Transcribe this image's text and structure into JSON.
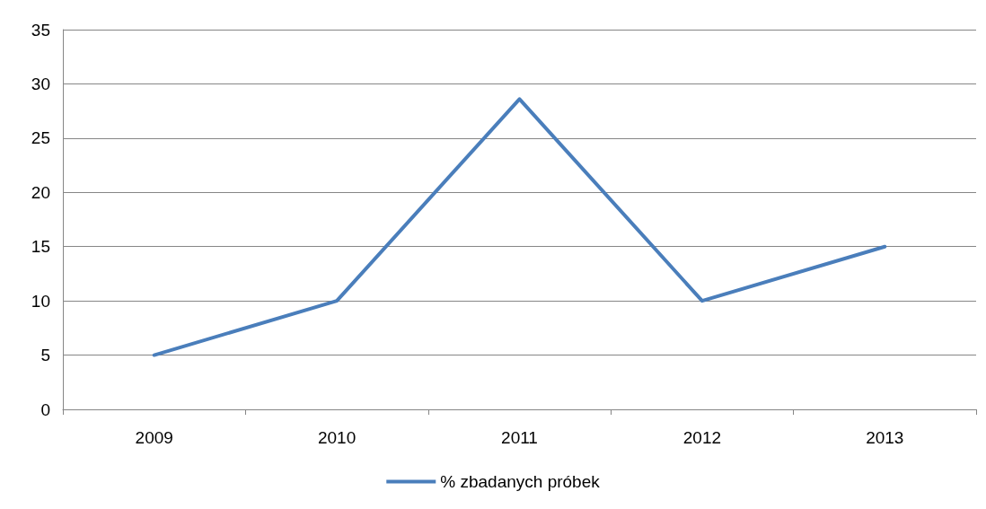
{
  "chart_data": {
    "type": "line",
    "categories": [
      "2009",
      "2010",
      "2011",
      "2012",
      "2013"
    ],
    "series": [
      {
        "name": "% zbadanych próbek",
        "color": "#4a7ebb",
        "values": [
          5,
          10,
          28.6,
          10,
          15
        ]
      }
    ],
    "ylim": [
      0,
      35
    ],
    "yticks": [
      0,
      5,
      10,
      15,
      20,
      25,
      30,
      35
    ],
    "grid": "y",
    "legend": "bottom",
    "marker": "none",
    "line_style": "solid"
  }
}
